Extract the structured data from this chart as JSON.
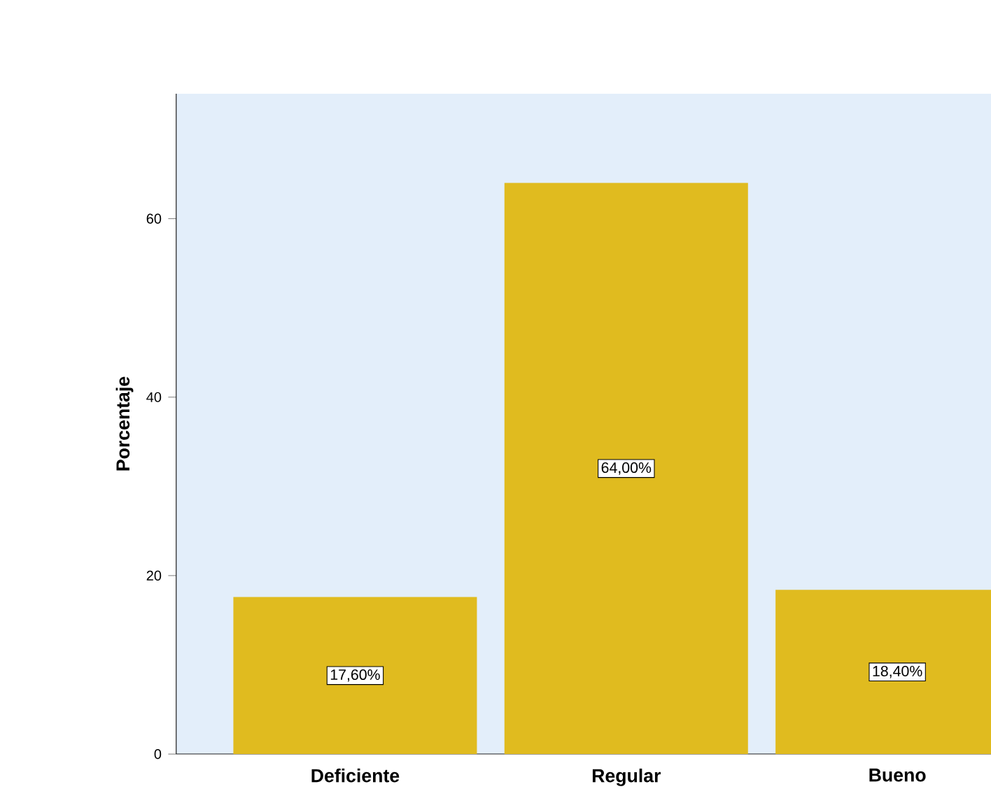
{
  "chart_data": {
    "type": "bar",
    "ylabel": "Porcentaje",
    "categories": [
      "Deficiente",
      "Regular",
      "Bueno"
    ],
    "values": [
      17.6,
      64,
      18.4
    ],
    "value_labels": [
      "17,60%",
      "64,00%",
      "18,40%"
    ],
    "color": "#e0bb1f",
    "ylim": [
      0,
      74
    ],
    "yticks": [
      0,
      20,
      40,
      60
    ],
    "grid": false
  }
}
